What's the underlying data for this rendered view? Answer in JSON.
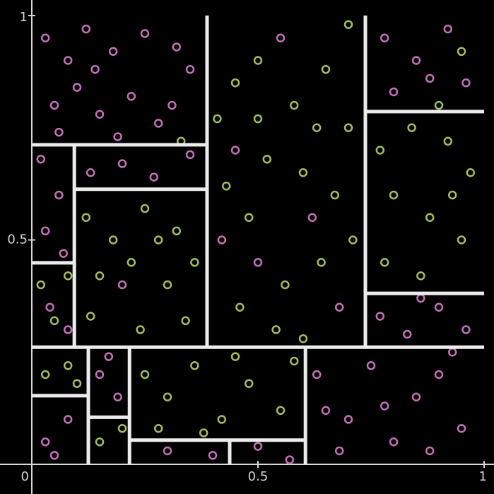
{
  "chart_data": {
    "type": "scatter",
    "xlim": [
      0,
      1
    ],
    "ylim": [
      0,
      1
    ],
    "xticks": [
      0,
      0.5,
      1
    ],
    "yticks": [
      0.5,
      1
    ],
    "series": [
      {
        "color": "#c571b8",
        "points": [
          [
            0.03,
            0.95
          ],
          [
            0.08,
            0.9
          ],
          [
            0.12,
            0.97
          ],
          [
            0.18,
            0.92
          ],
          [
            0.25,
            0.96
          ],
          [
            0.32,
            0.93
          ],
          [
            0.05,
            0.8
          ],
          [
            0.1,
            0.84
          ],
          [
            0.15,
            0.78
          ],
          [
            0.22,
            0.82
          ],
          [
            0.28,
            0.76
          ],
          [
            0.35,
            0.88
          ],
          [
            0.06,
            0.74
          ],
          [
            0.19,
            0.73
          ],
          [
            0.31,
            0.8
          ],
          [
            0.14,
            0.88
          ],
          [
            0.02,
            0.68
          ],
          [
            0.06,
            0.6
          ],
          [
            0.03,
            0.52
          ],
          [
            0.07,
            0.47
          ],
          [
            0.04,
            0.35
          ],
          [
            0.08,
            0.3
          ],
          [
            0.13,
            0.65
          ],
          [
            0.2,
            0.67
          ],
          [
            0.27,
            0.64
          ],
          [
            0.35,
            0.69
          ],
          [
            0.45,
            0.7
          ],
          [
            0.62,
            0.55
          ],
          [
            0.5,
            0.45
          ],
          [
            0.68,
            0.35
          ],
          [
            0.55,
            0.95
          ],
          [
            0.42,
            0.5
          ],
          [
            0.78,
            0.95
          ],
          [
            0.85,
            0.9
          ],
          [
            0.92,
            0.97
          ],
          [
            0.96,
            0.85
          ],
          [
            0.8,
            0.83
          ],
          [
            0.88,
            0.86
          ],
          [
            0.77,
            0.33
          ],
          [
            0.83,
            0.29
          ],
          [
            0.9,
            0.35
          ],
          [
            0.96,
            0.3
          ],
          [
            0.86,
            0.37
          ],
          [
            0.63,
            0.2
          ],
          [
            0.7,
            0.1
          ],
          [
            0.75,
            0.22
          ],
          [
            0.8,
            0.05
          ],
          [
            0.85,
            0.15
          ],
          [
            0.9,
            0.2
          ],
          [
            0.95,
            0.08
          ],
          [
            0.68,
            0.03
          ],
          [
            0.78,
            0.13
          ],
          [
            0.93,
            0.25
          ],
          [
            0.65,
            0.12
          ],
          [
            0.88,
            0.03
          ],
          [
            0.03,
            0.05
          ],
          [
            0.08,
            0.1
          ],
          [
            0.05,
            0.02
          ],
          [
            0.15,
            0.2
          ],
          [
            0.19,
            0.15
          ],
          [
            0.17,
            0.24
          ],
          [
            0.3,
            0.03
          ],
          [
            0.4,
            0.02
          ],
          [
            0.5,
            0.04
          ],
          [
            0.57,
            0.01
          ],
          [
            0.2,
            0.4
          ]
        ]
      },
      {
        "color": "#a3bf5a",
        "points": [
          [
            0.45,
            0.85
          ],
          [
            0.5,
            0.9
          ],
          [
            0.58,
            0.8
          ],
          [
            0.65,
            0.88
          ],
          [
            0.7,
            0.75
          ],
          [
            0.43,
            0.62
          ],
          [
            0.52,
            0.68
          ],
          [
            0.6,
            0.65
          ],
          [
            0.67,
            0.6
          ],
          [
            0.48,
            0.55
          ],
          [
            0.56,
            0.4
          ],
          [
            0.64,
            0.45
          ],
          [
            0.71,
            0.5
          ],
          [
            0.46,
            0.35
          ],
          [
            0.54,
            0.3
          ],
          [
            0.6,
            0.28
          ],
          [
            0.7,
            0.98
          ],
          [
            0.41,
            0.77
          ],
          [
            0.63,
            0.75
          ],
          [
            0.5,
            0.77
          ],
          [
            0.12,
            0.55
          ],
          [
            0.18,
            0.5
          ],
          [
            0.25,
            0.57
          ],
          [
            0.32,
            0.52
          ],
          [
            0.15,
            0.42
          ],
          [
            0.22,
            0.45
          ],
          [
            0.3,
            0.4
          ],
          [
            0.36,
            0.45
          ],
          [
            0.13,
            0.33
          ],
          [
            0.24,
            0.3
          ],
          [
            0.34,
            0.32
          ],
          [
            0.28,
            0.5
          ],
          [
            0.02,
            0.4
          ],
          [
            0.05,
            0.32
          ],
          [
            0.08,
            0.42
          ],
          [
            0.77,
            0.7
          ],
          [
            0.84,
            0.75
          ],
          [
            0.92,
            0.72
          ],
          [
            0.97,
            0.65
          ],
          [
            0.8,
            0.6
          ],
          [
            0.88,
            0.55
          ],
          [
            0.95,
            0.5
          ],
          [
            0.78,
            0.45
          ],
          [
            0.86,
            0.42
          ],
          [
            0.93,
            0.6
          ],
          [
            0.25,
            0.2
          ],
          [
            0.3,
            0.15
          ],
          [
            0.36,
            0.22
          ],
          [
            0.42,
            0.1
          ],
          [
            0.48,
            0.18
          ],
          [
            0.55,
            0.12
          ],
          [
            0.58,
            0.23
          ],
          [
            0.28,
            0.08
          ],
          [
            0.45,
            0.24
          ],
          [
            0.38,
            0.07
          ],
          [
            0.03,
            0.2
          ],
          [
            0.08,
            0.22
          ],
          [
            0.1,
            0.18
          ],
          [
            0.15,
            0.05
          ],
          [
            0.2,
            0.08
          ],
          [
            0.95,
            0.92
          ],
          [
            0.9,
            0.8
          ],
          [
            0.33,
            0.72
          ]
        ]
      }
    ],
    "splits": [
      {
        "x": [
          0,
          1
        ],
        "y": [
          0.261,
          0.261
        ]
      },
      {
        "x": [
          0.3875,
          0.3875
        ],
        "y": [
          0.261,
          1
        ]
      },
      {
        "x": [
          0.7375,
          0.7375
        ],
        "y": [
          0.261,
          1
        ]
      },
      {
        "x": [
          0,
          0.3875
        ],
        "y": [
          0.712,
          0.712
        ]
      },
      {
        "x": [
          0.094,
          0.094
        ],
        "y": [
          0.261,
          0.712
        ]
      },
      {
        "x": [
          0,
          0.094
        ],
        "y": [
          0.449,
          0.449
        ]
      },
      {
        "x": [
          0.094,
          0.3875
        ],
        "y": [
          0.613,
          0.613
        ]
      },
      {
        "x": [
          0.7375,
          1
        ],
        "y": [
          0.786,
          0.786
        ]
      },
      {
        "x": [
          0.7375,
          1
        ],
        "y": [
          0.381,
          0.381
        ]
      },
      {
        "x": [
          0.605,
          0.605
        ],
        "y": [
          0,
          0.261
        ]
      },
      {
        "x": [
          0.125,
          0.125
        ],
        "y": [
          0,
          0.261
        ]
      },
      {
        "x": [
          0,
          0.125
        ],
        "y": [
          0.153,
          0.153
        ]
      },
      {
        "x": [
          0.216,
          0.216
        ],
        "y": [
          0,
          0.261
        ]
      },
      {
        "x": [
          0.125,
          0.216
        ],
        "y": [
          0.105,
          0.105
        ]
      },
      {
        "x": [
          0.216,
          0.605
        ],
        "y": [
          0.054,
          0.054
        ]
      },
      {
        "x": [
          0.4375,
          0.4375
        ],
        "y": [
          0,
          0.054
        ]
      }
    ]
  }
}
